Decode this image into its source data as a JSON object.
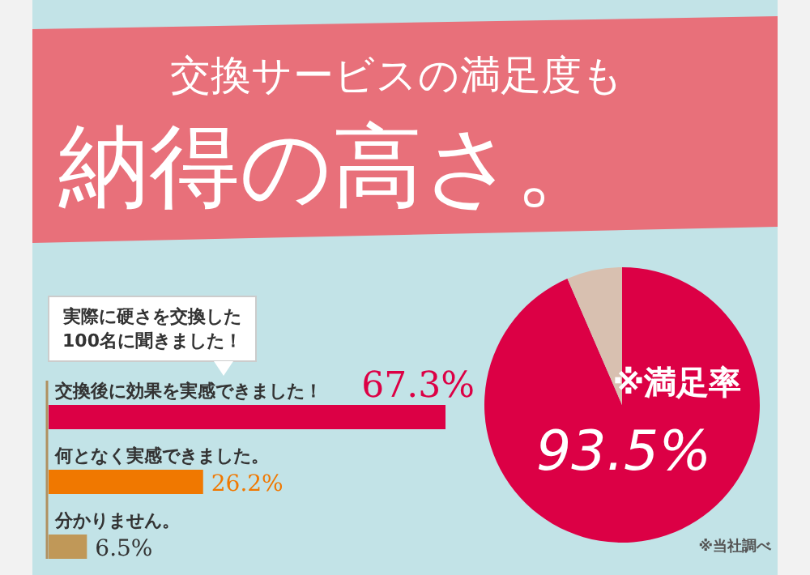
{
  "chart_data": [
    {
      "type": "bar",
      "orientation": "horizontal",
      "title": "交換サービスの満足度も",
      "subtitle": "納得の高さ。",
      "annotations": [
        "実際に硬さを交換した\n100名に聞きました！"
      ],
      "categories": [
        "交換後に効果を実感できました！",
        "何となく実感できました。",
        "分かりません。"
      ],
      "values": [
        67.3,
        26.2,
        6.5
      ],
      "colors": [
        "#dc0045",
        "#f07800",
        "#c09858"
      ],
      "value_labels": [
        "67.3%",
        "26.2%",
        "6.5%"
      ]
    },
    {
      "type": "pie",
      "categories": [
        "※満足率",
        null
      ],
      "values": [
        93.5,
        6.5
      ],
      "colors": [
        "#dc0045",
        "#d8c0b0"
      ],
      "value_labels": [
        "93.5%",
        null
      ],
      "annotations": [
        "※当社調べ"
      ]
    }
  ]
}
